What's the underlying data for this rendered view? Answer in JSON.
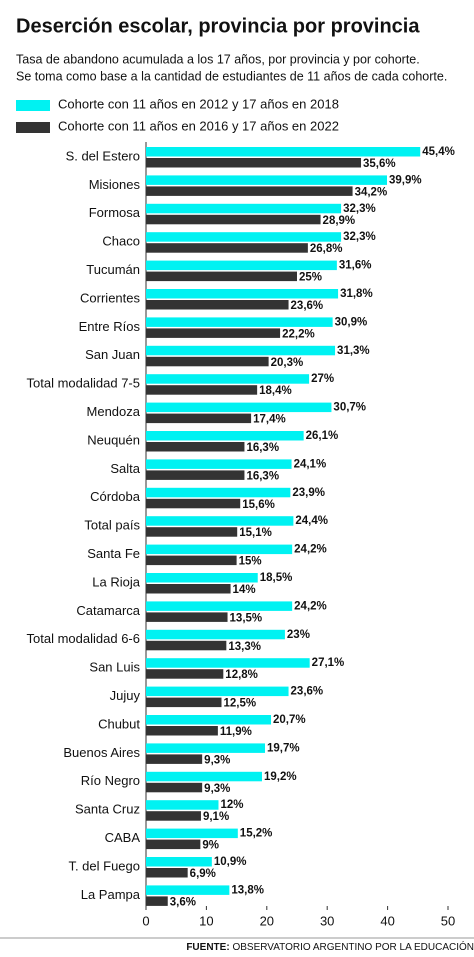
{
  "chart_data": {
    "type": "bar",
    "orientation": "horizontal",
    "title": "Deserción escolar, provincia por provincia",
    "subtitle": [
      "Tasa de abandono acumulada a los 17 años, por provincia y por cohorte.",
      "Se toma como base a la cantidad de estudiantes de 11 años de cada cohorte."
    ],
    "categories": [
      "S. del Estero",
      "Misiones",
      "Formosa",
      "Chaco",
      "Tucumán",
      "Corrientes",
      "Entre Ríos",
      "San Juan",
      "Total modalidad 7-5",
      "Mendoza",
      "Neuquén",
      "Salta",
      "Córdoba",
      "Total país",
      "Santa Fe",
      "La Rioja",
      "Catamarca",
      "Total modalidad 6-6",
      "San Luis",
      "Jujuy",
      "Chubut",
      "Buenos Aires",
      "Río Negro",
      "Santa Cruz",
      "CABA",
      "T. del Fuego",
      "La Pampa"
    ],
    "series": [
      {
        "name": "Cohorte con 11 años en 2012 y 17 años en 2018",
        "color": "#00f2f2",
        "values": [
          45.4,
          39.9,
          32.3,
          32.3,
          31.6,
          31.8,
          30.9,
          31.3,
          27,
          30.7,
          26.1,
          24.1,
          23.9,
          24.4,
          24.2,
          18.5,
          24.2,
          23,
          27.1,
          23.6,
          20.7,
          19.7,
          19.2,
          12,
          15.2,
          10.9,
          13.8
        ],
        "value_labels": [
          "45,4%",
          "39,9%",
          "32,3%",
          "32,3%",
          "31,6%",
          "31,8%",
          "30,9%",
          "31,3%",
          "27%",
          "30,7%",
          "26,1%",
          "24,1%",
          "23,9%",
          "24,4%",
          "24,2%",
          "18,5%",
          "24,2%",
          "23%",
          "27,1%",
          "23,6%",
          "20,7%",
          "19,7%",
          "19,2%",
          "12%",
          "15,2%",
          "10,9%",
          "13,8%"
        ]
      },
      {
        "name": "Cohorte con 11 años en 2016 y 17 años en 2022",
        "color": "#333333",
        "values": [
          35.6,
          34.2,
          28.9,
          26.8,
          25,
          23.6,
          22.2,
          20.3,
          18.4,
          17.4,
          16.3,
          16.3,
          15.6,
          15.1,
          15,
          14,
          13.5,
          13.3,
          12.8,
          12.5,
          11.9,
          9.3,
          9.3,
          9.1,
          9,
          6.9,
          3.6
        ],
        "value_labels": [
          "35,6%",
          "34,2%",
          "28,9%",
          "26,8%",
          "25%",
          "23,6%",
          "22,2%",
          "20,3%",
          "18,4%",
          "17,4%",
          "16,3%",
          "16,3%",
          "15,6%",
          "15,1%",
          "15%",
          "14%",
          "13,5%",
          "13,3%",
          "12,8%",
          "12,5%",
          "11,9%",
          "9,3%",
          "9,3%",
          "9,1%",
          "9%",
          "6,9%",
          "3,6%"
        ]
      }
    ],
    "xlim": [
      0,
      50
    ],
    "xticks": [
      0,
      10,
      20,
      30,
      40,
      50
    ],
    "source_label": "FUENTE:",
    "source": "OBSERVATORIO ARGENTINO POR LA EDUCACIÓN"
  }
}
